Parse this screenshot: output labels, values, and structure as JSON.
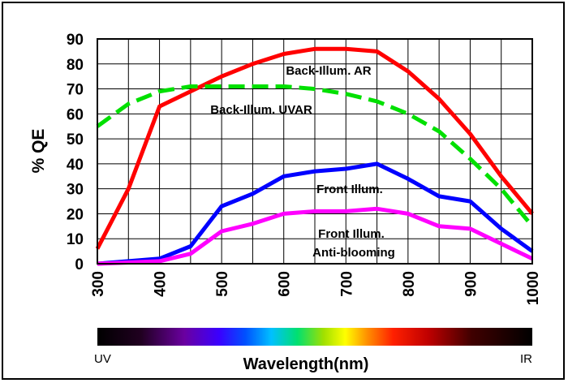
{
  "chart_data": {
    "type": "line",
    "ylabel": "% QE",
    "xlabel": "Wavelength(nm)",
    "xlim": [
      300,
      1000
    ],
    "ylim": [
      0,
      90
    ],
    "x_ticks": [
      300,
      400,
      500,
      600,
      700,
      800,
      900,
      1000
    ],
    "y_ticks": [
      0,
      10,
      20,
      30,
      40,
      50,
      60,
      70,
      80,
      90
    ],
    "grid": "on",
    "series": [
      {
        "name": "Back-Illum. AR",
        "color": "#ff0000",
        "dash": "solid",
        "points": [
          [
            300,
            6
          ],
          [
            350,
            30
          ],
          [
            400,
            63
          ],
          [
            450,
            69
          ],
          [
            500,
            75
          ],
          [
            550,
            80
          ],
          [
            600,
            84
          ],
          [
            650,
            86
          ],
          [
            700,
            86
          ],
          [
            750,
            85
          ],
          [
            800,
            77
          ],
          [
            850,
            66
          ],
          [
            900,
            52
          ],
          [
            950,
            35
          ],
          [
            1000,
            20
          ]
        ]
      },
      {
        "name": "Back-Illum. UVAR",
        "color": "#00e000",
        "dash": "dashed",
        "points": [
          [
            300,
            55
          ],
          [
            350,
            64
          ],
          [
            400,
            69
          ],
          [
            450,
            71
          ],
          [
            500,
            71
          ],
          [
            550,
            71
          ],
          [
            600,
            71
          ],
          [
            650,
            70
          ],
          [
            700,
            68
          ],
          [
            750,
            65
          ],
          [
            800,
            60
          ],
          [
            850,
            53
          ],
          [
            900,
            42
          ],
          [
            950,
            30
          ],
          [
            1000,
            15
          ]
        ]
      },
      {
        "name": "Front Illum.",
        "color": "#0000ff",
        "dash": "solid",
        "points": [
          [
            300,
            0
          ],
          [
            350,
            1
          ],
          [
            400,
            2
          ],
          [
            450,
            7
          ],
          [
            500,
            23
          ],
          [
            550,
            28
          ],
          [
            600,
            35
          ],
          [
            650,
            37
          ],
          [
            700,
            38
          ],
          [
            750,
            40
          ],
          [
            800,
            34
          ],
          [
            850,
            27
          ],
          [
            900,
            25
          ],
          [
            950,
            14
          ],
          [
            1000,
            5
          ]
        ]
      },
      {
        "name": "Front Illum. Anti-blooming",
        "color": "#ff00ff",
        "dash": "solid",
        "points": [
          [
            300,
            0
          ],
          [
            350,
            0.5
          ],
          [
            400,
            1
          ],
          [
            450,
            4
          ],
          [
            500,
            13
          ],
          [
            550,
            16
          ],
          [
            600,
            20
          ],
          [
            650,
            21
          ],
          [
            700,
            21
          ],
          [
            750,
            22
          ],
          [
            800,
            20
          ],
          [
            850,
            15
          ],
          [
            900,
            14
          ],
          [
            950,
            8
          ],
          [
            1000,
            2
          ]
        ]
      }
    ],
    "annotations": {
      "back_ar": "Back-Illum.  AR",
      "back_uvar": "Back-Illum.  UVAR",
      "front": "Front Illum.",
      "front_ab_line1": "Front Illum.",
      "front_ab_line2": "Anti-blooming"
    },
    "spectrum_bar": {
      "left_label": "UV",
      "right_label": "IR"
    }
  }
}
